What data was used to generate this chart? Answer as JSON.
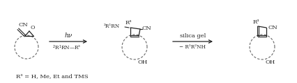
{
  "background_color": "#ffffff",
  "fig_width": 4.27,
  "fig_height": 1.2,
  "dpi": 100,
  "text_color": "#222222",
  "footnote": "R³ = H, Me, Et and TMS",
  "arrow1_label_top": "hν",
  "arrow1_label_bottom": "²R¹RN——R³",
  "arrow2_label_top": "silica gel",
  "arrow2_label_bottom": "− R¹R²NH",
  "mol1_CN": "CN",
  "mol1_O": "O",
  "mol2_NR": "²R¹RN",
  "mol2_CN": "CN",
  "mol2_OH": "OH",
  "mol2_R3": "R³",
  "mol3_CN": "CN",
  "mol3_OH": "OH",
  "mol3_R3": "R³",
  "dashed_circle_color": "#666666",
  "bond_color": "#222222",
  "font_size": 6.0,
  "small_font_size": 5.2,
  "italic_font_size": 6.5
}
